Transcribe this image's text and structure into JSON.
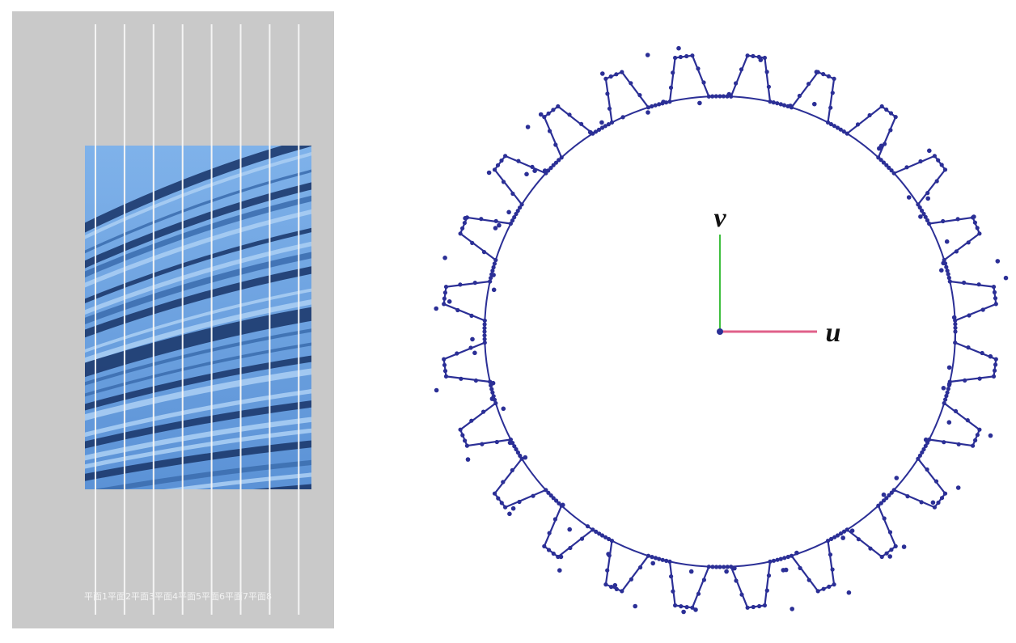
{
  "figure": {
    "plane_caption": "平面1平面2平面3平面4平面5平面6平面7平面8",
    "axis_v": "v",
    "axis_u": "u"
  }
}
